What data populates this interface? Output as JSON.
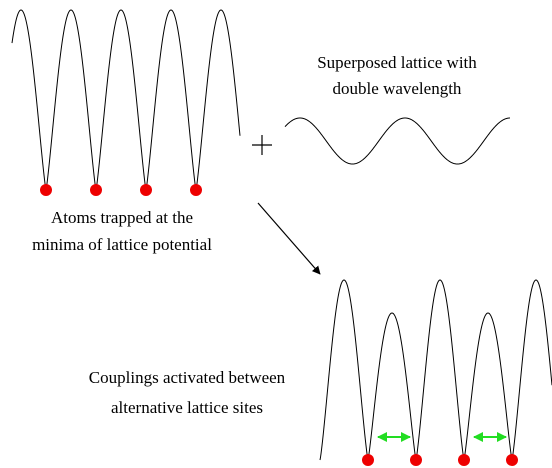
{
  "labels": {
    "superposed": [
      "Superposed lattice with",
      "double wavelength"
    ],
    "atoms": [
      "Atoms trapped at the",
      "minima of lattice potential"
    ],
    "couplings": [
      "Couplings activated between",
      "alternative lattice sites"
    ]
  }
}
